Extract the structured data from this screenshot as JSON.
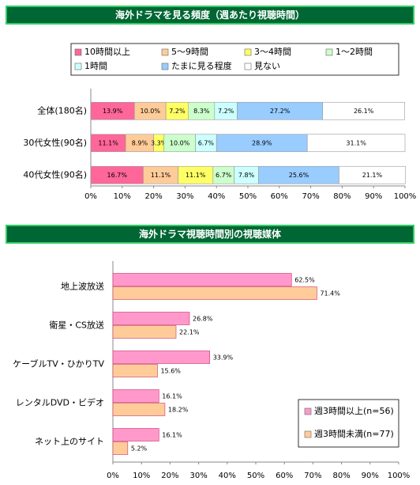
{
  "chart_data": [
    {
      "type": "bar",
      "stacked": true,
      "title": "海外ドラマを見る頻度（週あたり視聴時間）",
      "categories": [
        "全体(180名)",
        "30代女性(90名)",
        "40代女性(90名)"
      ],
      "series": [
        {
          "name": "10時間以上",
          "color": "#ff6699",
          "values": [
            13.9,
            11.1,
            16.7
          ],
          "value_labels": [
            "13.9%",
            "11.1%",
            "16.7%"
          ]
        },
        {
          "name": "5～9時間",
          "color": "#ffcc99",
          "values": [
            10.0,
            8.9,
            11.1
          ],
          "value_labels": [
            "10.0%",
            "8.9%",
            "11.1%"
          ]
        },
        {
          "name": "3～4時間",
          "color": "#ffff66",
          "values": [
            7.2,
            3.3,
            11.1
          ],
          "value_labels": [
            "7.2%",
            "3.3%",
            "11.1%"
          ]
        },
        {
          "name": "1～2時間",
          "color": "#ccffcc",
          "values": [
            8.3,
            10.0,
            6.7
          ],
          "value_labels": [
            "8.3%",
            "10.0%",
            "6.7%"
          ]
        },
        {
          "name": "1時間",
          "color": "#ccffff",
          "values": [
            7.2,
            6.7,
            7.8
          ],
          "value_labels": [
            "7.2%",
            "6.7%",
            "7.8%"
          ]
        },
        {
          "name": "たまに見る程度",
          "color": "#99ccff",
          "values": [
            27.2,
            28.9,
            25.6
          ],
          "value_labels": [
            "27.2%",
            "28.9%",
            "25.6%"
          ]
        },
        {
          "name": "見ない",
          "color": "#ffffff",
          "values": [
            26.1,
            31.1,
            21.1
          ],
          "value_labels": [
            "26.1%",
            "31.1%",
            "21.1%"
          ]
        }
      ],
      "xlim": [
        0,
        100
      ],
      "xticks": [
        {
          "value": 0,
          "label": "0%"
        },
        {
          "value": 10,
          "label": "10%"
        },
        {
          "value": 20,
          "label": "20%"
        },
        {
          "value": 30,
          "label": "30%"
        },
        {
          "value": 40,
          "label": "40%"
        },
        {
          "value": 50,
          "label": "50%"
        },
        {
          "value": 60,
          "label": "60%"
        },
        {
          "value": 70,
          "label": "70%"
        },
        {
          "value": 80,
          "label": "80%"
        },
        {
          "value": 90,
          "label": "90%"
        },
        {
          "value": 100,
          "label": "100%"
        }
      ],
      "legend": "top"
    },
    {
      "type": "bar",
      "stacked": false,
      "title": "海外ドラマ視聴時間別の視聴媒体",
      "categories": [
        "地上波放送",
        "衛星・CS放送",
        "ケーブルTV・ひかりTV",
        "レンタルDVD・ビデオ",
        "ネット上のサイト"
      ],
      "series": [
        {
          "name": "週3時間以上(n=56)",
          "color": "#ff99cc",
          "values": [
            62.5,
            26.8,
            33.9,
            16.1,
            16.1
          ],
          "value_labels": [
            "62.5%",
            "26.8%",
            "33.9%",
            "16.1%",
            "16.1%"
          ]
        },
        {
          "name": "週3時間未満(n=77)",
          "color": "#ffcc99",
          "values": [
            71.4,
            22.1,
            15.6,
            18.2,
            5.2
          ],
          "value_labels": [
            "71.4%",
            "22.1%",
            "15.6%",
            "18.2%",
            "5.2%"
          ]
        }
      ],
      "xlim": [
        0,
        100
      ],
      "xticks": [
        {
          "value": 0,
          "label": "0%"
        },
        {
          "value": 10,
          "label": "10%"
        },
        {
          "value": 20,
          "label": "20%"
        },
        {
          "value": 30,
          "label": "30%"
        },
        {
          "value": 40,
          "label": "40%"
        },
        {
          "value": 50,
          "label": "50%"
        },
        {
          "value": 60,
          "label": "60%"
        },
        {
          "value": 70,
          "label": "70%"
        },
        {
          "value": 80,
          "label": "80%"
        },
        {
          "value": 90,
          "label": "90%"
        },
        {
          "value": 100,
          "label": "100%"
        }
      ],
      "legend": "lower right"
    }
  ]
}
